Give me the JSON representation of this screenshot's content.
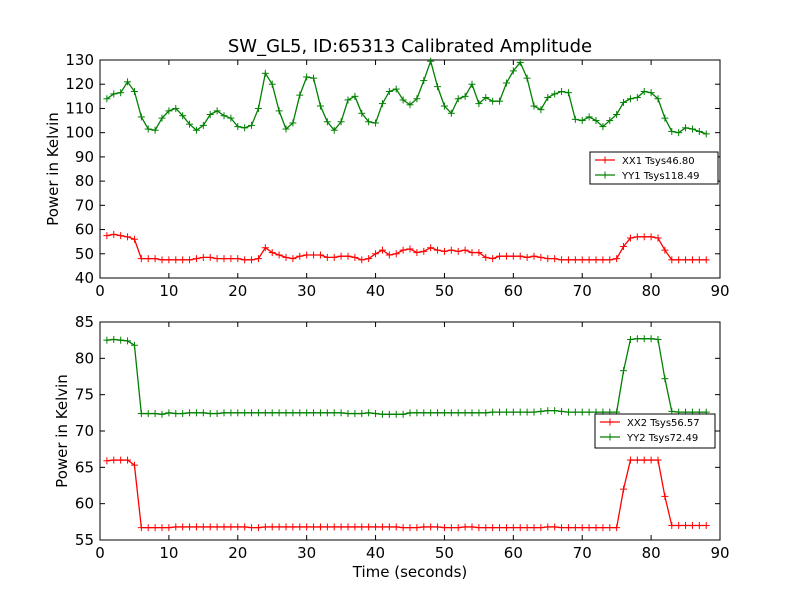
{
  "chart_data": [
    {
      "type": "line",
      "title": "SW_GL5, ID:65313 Calibrated Amplitude",
      "xlabel": "",
      "ylabel": "Power in Kelvin",
      "xlim": [
        0,
        90
      ],
      "ylim": [
        40,
        130
      ],
      "xticks": [
        0,
        10,
        20,
        30,
        40,
        50,
        60,
        70,
        80,
        90
      ],
      "yticks": [
        40,
        50,
        60,
        70,
        80,
        90,
        100,
        110,
        120,
        130
      ],
      "grid": false,
      "legend_position": "right",
      "x": [
        1,
        2,
        3,
        4,
        5,
        6,
        7,
        8,
        9,
        10,
        11,
        12,
        13,
        14,
        15,
        16,
        17,
        18,
        19,
        20,
        21,
        22,
        23,
        24,
        25,
        26,
        27,
        28,
        29,
        30,
        31,
        32,
        33,
        34,
        35,
        36,
        37,
        38,
        39,
        40,
        41,
        42,
        43,
        44,
        45,
        46,
        47,
        48,
        49,
        50,
        51,
        52,
        53,
        54,
        55,
        56,
        57,
        58,
        59,
        60,
        61,
        62,
        63,
        64,
        65,
        66,
        67,
        68,
        69,
        70,
        71,
        72,
        73,
        74,
        75,
        76,
        77,
        78,
        79,
        80,
        81,
        82,
        83,
        84,
        85,
        86,
        87,
        88
      ],
      "series": [
        {
          "name": "XX1 Tsys46.80",
          "color": "#ff0000",
          "values": [
            57.5,
            58,
            57.5,
            57,
            56,
            48,
            48,
            48,
            47.5,
            47.5,
            47.5,
            47.5,
            47.5,
            48,
            48.5,
            48.5,
            48,
            48,
            48,
            48,
            47.5,
            47.5,
            48,
            52.5,
            50.5,
            49.5,
            48.5,
            48,
            49,
            49.5,
            49.5,
            49.5,
            48.5,
            48.5,
            49,
            49,
            48.5,
            47.5,
            48,
            50,
            51.5,
            49.5,
            50,
            51.5,
            52,
            50.5,
            51,
            52.5,
            51.5,
            51,
            51.5,
            51,
            51.5,
            50.5,
            50.5,
            48.5,
            48,
            49,
            49,
            49,
            49,
            48.5,
            49,
            48.5,
            48,
            48,
            47.5,
            47.5,
            47.5,
            47.5,
            47.5,
            47.5,
            47.5,
            47.5,
            48,
            53,
            56.5,
            57,
            57,
            57,
            56.5,
            51.5,
            47.5,
            47.5,
            47.5,
            47.5,
            47.5,
            47.5
          ]
        },
        {
          "name": "YY1 Tsys118.49",
          "color": "#008000",
          "values": [
            114,
            116,
            116.5,
            121,
            117,
            106.5,
            101.5,
            101,
            106,
            109,
            110,
            107,
            103.5,
            101,
            103,
            107.5,
            109,
            107,
            106,
            102.5,
            102,
            103,
            110,
            124.5,
            120,
            109,
            101.5,
            104,
            115.5,
            123,
            122.5,
            111,
            104.5,
            101,
            104.5,
            113.5,
            115,
            108,
            104.5,
            104,
            112,
            117,
            118,
            113.5,
            111.5,
            114,
            121.5,
            129.5,
            119,
            111,
            108,
            114,
            115,
            120,
            112,
            114.5,
            113,
            113,
            120.5,
            125.5,
            129,
            122.5,
            111,
            109.5,
            114.5,
            116,
            117,
            116.5,
            105.5,
            105,
            106.5,
            105,
            102.5,
            105,
            107.5,
            112.5,
            114,
            114.5,
            117,
            116.5,
            114,
            106,
            100.5,
            100,
            102,
            101.5,
            100.5,
            99.5
          ]
        }
      ]
    },
    {
      "type": "line",
      "title": "",
      "xlabel": "Time (seconds)",
      "ylabel": "Power in Kelvin",
      "xlim": [
        0,
        90
      ],
      "ylim": [
        55,
        85
      ],
      "xticks": [
        0,
        10,
        20,
        30,
        40,
        50,
        60,
        70,
        80,
        90
      ],
      "yticks": [
        55,
        60,
        65,
        70,
        75,
        80,
        85
      ],
      "grid": false,
      "legend_position": "right",
      "x": [
        1,
        2,
        3,
        4,
        5,
        6,
        7,
        8,
        9,
        10,
        11,
        12,
        13,
        14,
        15,
        16,
        17,
        18,
        19,
        20,
        21,
        22,
        23,
        24,
        25,
        26,
        27,
        28,
        29,
        30,
        31,
        32,
        33,
        34,
        35,
        36,
        37,
        38,
        39,
        40,
        41,
        42,
        43,
        44,
        45,
        46,
        47,
        48,
        49,
        50,
        51,
        52,
        53,
        54,
        55,
        56,
        57,
        58,
        59,
        60,
        61,
        62,
        63,
        64,
        65,
        66,
        67,
        68,
        69,
        70,
        71,
        72,
        73,
        74,
        75,
        76,
        77,
        78,
        79,
        80,
        81,
        82,
        83,
        84,
        85,
        86,
        87,
        88
      ],
      "series": [
        {
          "name": "XX2 Tsys56.57",
          "color": "#ff0000",
          "values": [
            65.9,
            66,
            66,
            66,
            65.3,
            56.7,
            56.7,
            56.7,
            56.7,
            56.7,
            56.8,
            56.8,
            56.8,
            56.8,
            56.8,
            56.8,
            56.8,
            56.8,
            56.8,
            56.8,
            56.8,
            56.7,
            56.7,
            56.8,
            56.8,
            56.8,
            56.8,
            56.8,
            56.8,
            56.8,
            56.8,
            56.8,
            56.8,
            56.8,
            56.8,
            56.8,
            56.8,
            56.8,
            56.8,
            56.8,
            56.8,
            56.8,
            56.8,
            56.7,
            56.7,
            56.7,
            56.8,
            56.8,
            56.8,
            56.7,
            56.7,
            56.7,
            56.8,
            56.8,
            56.7,
            56.7,
            56.7,
            56.7,
            56.7,
            56.7,
            56.7,
            56.7,
            56.7,
            56.7,
            56.8,
            56.8,
            56.7,
            56.7,
            56.7,
            56.7,
            56.7,
            56.7,
            56.7,
            56.7,
            56.7,
            62,
            66,
            66,
            66,
            66,
            66,
            61,
            57,
            57,
            57,
            57,
            57,
            57
          ]
        },
        {
          "name": "YY2 Tsys72.49",
          "color": "#008000",
          "values": [
            82.5,
            82.6,
            82.5,
            82.4,
            81.8,
            72.4,
            72.4,
            72.4,
            72.3,
            72.5,
            72.4,
            72.4,
            72.5,
            72.5,
            72.5,
            72.4,
            72.4,
            72.5,
            72.5,
            72.5,
            72.5,
            72.5,
            72.5,
            72.5,
            72.5,
            72.5,
            72.5,
            72.5,
            72.5,
            72.5,
            72.5,
            72.5,
            72.5,
            72.5,
            72.5,
            72.4,
            72.4,
            72.4,
            72.5,
            72.4,
            72.3,
            72.3,
            72.3,
            72.3,
            72.5,
            72.5,
            72.5,
            72.5,
            72.5,
            72.5,
            72.5,
            72.5,
            72.5,
            72.5,
            72.5,
            72.5,
            72.6,
            72.6,
            72.6,
            72.6,
            72.6,
            72.6,
            72.6,
            72.7,
            72.8,
            72.8,
            72.7,
            72.6,
            72.6,
            72.6,
            72.6,
            72.6,
            72.6,
            72.6,
            72.6,
            78.3,
            82.6,
            82.7,
            82.7,
            82.7,
            82.6,
            77.2,
            72.7,
            72.6,
            72.6,
            72.6,
            72.6,
            72.6
          ]
        }
      ]
    }
  ]
}
